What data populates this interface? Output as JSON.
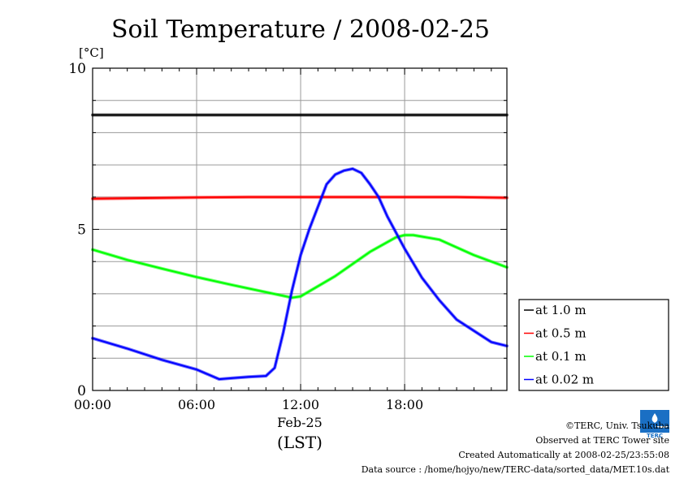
{
  "chart_data": {
    "type": "line",
    "title": "Soil Temperature / 2008-02-25",
    "ylabel": "[°C]",
    "xlabel": "(LST)",
    "date_label": "Feb-25",
    "xlim": [
      0,
      23.9
    ],
    "ylim": [
      0,
      10
    ],
    "yticks": [
      0,
      5,
      10
    ],
    "ytick_labels": [
      "0",
      "5",
      "10"
    ],
    "xticks": [
      0,
      6,
      12,
      18
    ],
    "xtick_labels": [
      "00:00",
      "06:00",
      "12:00",
      "18:00"
    ],
    "grid": true,
    "legend_position": "bottom-right outside",
    "series": [
      {
        "name": "at 1.0 m",
        "color": "#000000",
        "x": [
          0,
          6,
          12,
          18,
          23.9
        ],
        "values": [
          8.55,
          8.55,
          8.55,
          8.55,
          8.55
        ]
      },
      {
        "name": "at 0.5 m",
        "color": "#ff0000",
        "x": [
          0,
          3,
          6,
          9,
          12,
          15,
          18,
          21,
          23.9
        ],
        "values": [
          5.95,
          5.97,
          5.99,
          6.0,
          6.0,
          6.0,
          6.0,
          6.0,
          5.98
        ]
      },
      {
        "name": "at 0.1 m",
        "color": "#00ff00",
        "x": [
          0,
          2,
          4,
          6,
          8,
          10,
          11.5,
          12,
          14,
          16,
          17.5,
          18,
          18.5,
          20,
          22,
          23.9
        ],
        "values": [
          4.37,
          4.05,
          3.78,
          3.52,
          3.28,
          3.05,
          2.88,
          2.92,
          3.55,
          4.3,
          4.75,
          4.82,
          4.82,
          4.68,
          4.2,
          3.82
        ]
      },
      {
        "name": "at 0.02 m",
        "color": "#0000ff",
        "x": [
          0,
          2,
          4,
          6,
          7.3,
          8,
          9,
          10,
          10.5,
          11,
          11.5,
          12,
          12.5,
          13,
          13.5,
          14,
          14.5,
          15,
          15.5,
          16,
          16.5,
          17,
          18,
          19,
          20,
          21,
          22,
          23,
          23.9
        ],
        "values": [
          1.62,
          1.3,
          0.95,
          0.65,
          0.35,
          0.38,
          0.42,
          0.45,
          0.7,
          1.8,
          3.1,
          4.2,
          5.0,
          5.7,
          6.4,
          6.7,
          6.82,
          6.88,
          6.75,
          6.4,
          6.0,
          5.4,
          4.4,
          3.5,
          2.8,
          2.2,
          1.85,
          1.5,
          1.38
        ]
      }
    ]
  },
  "footer": {
    "copyright": "©TERC, Univ. Tsukuba",
    "observed": "Observed at TERC Tower site",
    "created": "Created Automatically at 2008-02-25/23:55:08",
    "source": "Data source : /home/hojyo/new/TERC-data/sorted_data/MET.10s.dat"
  }
}
